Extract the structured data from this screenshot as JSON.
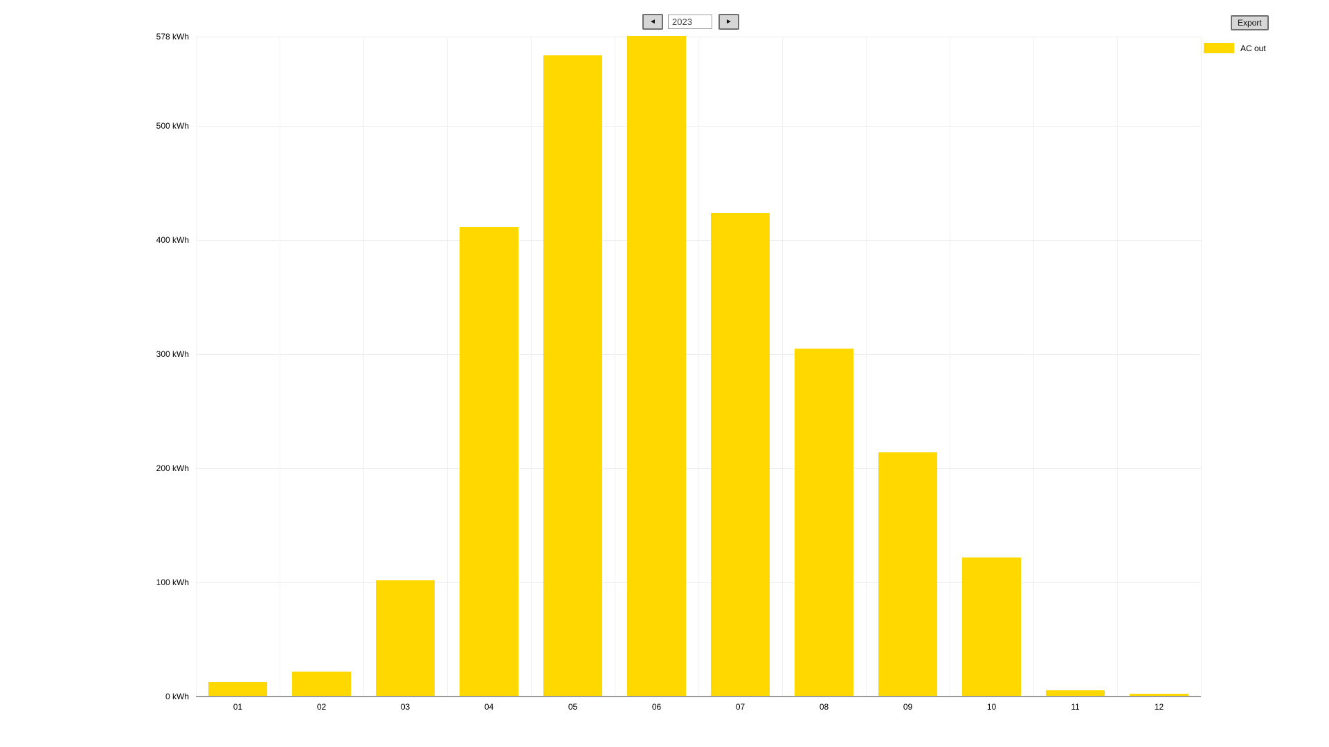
{
  "controls": {
    "prev_icon": "◄",
    "next_icon": "►",
    "year_value": "2023",
    "export_label": "Export"
  },
  "legend": {
    "label": "AC out",
    "color": "#FFD800"
  },
  "chart_data": {
    "type": "bar",
    "title": "",
    "categories": [
      "01",
      "02",
      "03",
      "04",
      "05",
      "06",
      "07",
      "08",
      "09",
      "10",
      "11",
      "12"
    ],
    "series": [
      {
        "name": "AC out",
        "color": "#FFD800",
        "values": [
          12,
          21,
          101,
          411,
          561,
          578,
          423,
          304,
          213,
          121,
          5,
          2
        ]
      }
    ],
    "unit": "kWh",
    "xlabel": "",
    "ylabel": "kWh",
    "ylim": [
      0,
      578
    ],
    "y_ticks": [
      0,
      100,
      200,
      300,
      400,
      500,
      578
    ],
    "y_tick_suffix": " kWh",
    "grid": true,
    "legend_position": "top-right",
    "colors": {
      "grid_h": "#ededed",
      "grid_v": "#f1f1f1",
      "axis": "#9a9a9a",
      "background": "#ffffff"
    }
  }
}
